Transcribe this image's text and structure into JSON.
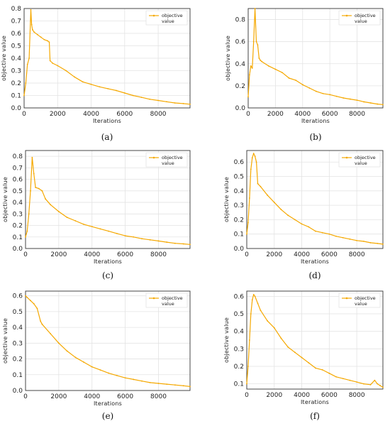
{
  "chart_data": [
    {
      "type": "line",
      "caption": "(a)",
      "xlabel": "Iterations",
      "ylabel": "objective value",
      "legend": [
        "objective",
        "value"
      ],
      "legend_position": "top-right",
      "grid": true,
      "color": "#F5A800",
      "xlim": [
        0,
        9900
      ],
      "ylim": [
        0,
        0.8
      ],
      "xticks": [
        "0",
        "2000",
        "4000",
        "6000",
        "8000"
      ],
      "yticks": [
        "0.0",
        "0.1",
        "0.2",
        "0.3",
        "0.4",
        "0.5",
        "0.6",
        "0.7",
        "0.8"
      ],
      "x": [
        0,
        100,
        200,
        300,
        400,
        450,
        500,
        600,
        800,
        1000,
        1200,
        1400,
        1500,
        1550,
        1700,
        2000,
        2500,
        3000,
        3500,
        4000,
        4500,
        5000,
        5500,
        6000,
        6500,
        7000,
        7500,
        8000,
        8500,
        9000,
        9500,
        9900
      ],
      "y": [
        0.1,
        0.2,
        0.35,
        0.4,
        0.79,
        0.67,
        0.63,
        0.61,
        0.59,
        0.57,
        0.55,
        0.54,
        0.53,
        0.38,
        0.36,
        0.34,
        0.3,
        0.25,
        0.21,
        0.19,
        0.17,
        0.155,
        0.14,
        0.12,
        0.1,
        0.085,
        0.07,
        0.06,
        0.05,
        0.04,
        0.035,
        0.03
      ]
    },
    {
      "type": "line",
      "caption": "(b)",
      "xlabel": "Iterations",
      "ylabel": "objective value",
      "legend": [
        "objective",
        "value"
      ],
      "legend_position": "top-right",
      "grid": true,
      "color": "#F5A800",
      "xlim": [
        0,
        9900
      ],
      "ylim": [
        0,
        0.9
      ],
      "xticks": [
        "0",
        "2000",
        "4000",
        "6000",
        "8000"
      ],
      "yticks": [
        "0.0",
        "0.2",
        "0.4",
        "0.6",
        "0.8"
      ],
      "x": [
        0,
        100,
        200,
        300,
        400,
        500,
        600,
        700,
        800,
        900,
        1000,
        1500,
        2000,
        2500,
        3000,
        3500,
        4000,
        4500,
        5000,
        5500,
        6000,
        6500,
        7000,
        7500,
        8000,
        8500,
        9000,
        9500,
        9900
      ],
      "y": [
        0.1,
        0.3,
        0.38,
        0.36,
        0.6,
        0.9,
        0.6,
        0.57,
        0.45,
        0.43,
        0.42,
        0.38,
        0.35,
        0.32,
        0.27,
        0.25,
        0.21,
        0.18,
        0.15,
        0.13,
        0.12,
        0.105,
        0.09,
        0.08,
        0.07,
        0.055,
        0.045,
        0.035,
        0.03
      ]
    },
    {
      "type": "line",
      "caption": "(c)",
      "xlabel": "Iterations",
      "ylabel": "objective value",
      "legend": [
        "objective",
        "value"
      ],
      "legend_position": "top-right",
      "grid": true,
      "color": "#F5A800",
      "xlim": [
        0,
        9900
      ],
      "ylim": [
        0,
        0.85
      ],
      "xticks": [
        "0",
        "2000",
        "4000",
        "6000",
        "8000"
      ],
      "yticks": [
        "0.0",
        "0.1",
        "0.2",
        "0.3",
        "0.4",
        "0.5",
        "0.6",
        "0.7",
        "0.8"
      ],
      "x": [
        0,
        100,
        200,
        300,
        400,
        500,
        600,
        800,
        1000,
        1200,
        1500,
        2000,
        2500,
        3000,
        3500,
        4000,
        4500,
        5000,
        5500,
        6000,
        6500,
        7000,
        7500,
        8000,
        8500,
        9000,
        9500,
        9900
      ],
      "y": [
        0.1,
        0.15,
        0.3,
        0.5,
        0.79,
        0.65,
        0.53,
        0.52,
        0.5,
        0.43,
        0.38,
        0.32,
        0.27,
        0.24,
        0.21,
        0.19,
        0.17,
        0.15,
        0.13,
        0.11,
        0.1,
        0.085,
        0.075,
        0.065,
        0.055,
        0.045,
        0.04,
        0.035
      ]
    },
    {
      "type": "line",
      "caption": "(d)",
      "xlabel": "Iterations",
      "ylabel": "objective value",
      "legend": [
        "objective",
        "value"
      ],
      "legend_position": "top-right",
      "grid": true,
      "color": "#F5A800",
      "xlim": [
        0,
        9900
      ],
      "ylim": [
        0,
        0.68
      ],
      "xticks": [
        "0",
        "2000",
        "4000",
        "6000",
        "8000"
      ],
      "yticks": [
        "0.0",
        "0.1",
        "0.2",
        "0.3",
        "0.4",
        "0.5",
        "0.6"
      ],
      "x": [
        0,
        100,
        200,
        300,
        400,
        500,
        600,
        700,
        800,
        1000,
        1500,
        2000,
        2500,
        3000,
        3500,
        4000,
        4500,
        5000,
        5500,
        6000,
        6500,
        7000,
        7500,
        8000,
        8500,
        9000,
        9500,
        9900
      ],
      "y": [
        0.1,
        0.18,
        0.35,
        0.55,
        0.63,
        0.66,
        0.64,
        0.6,
        0.45,
        0.43,
        0.37,
        0.32,
        0.27,
        0.23,
        0.2,
        0.17,
        0.15,
        0.12,
        0.11,
        0.1,
        0.085,
        0.075,
        0.065,
        0.055,
        0.05,
        0.04,
        0.035,
        0.03
      ]
    },
    {
      "type": "line",
      "caption": "(e)",
      "xlabel": "Iterations",
      "ylabel": "objective value",
      "legend": [
        "objective",
        "value"
      ],
      "legend_position": "top-right",
      "grid": true,
      "color": "#F5A800",
      "xlim": [
        0,
        9900
      ],
      "ylim": [
        0,
        0.63
      ],
      "xticks": [
        "0",
        "2000",
        "4000",
        "6000",
        "8000"
      ],
      "yticks": [
        "0.0",
        "0.1",
        "0.2",
        "0.3",
        "0.4",
        "0.5",
        "0.6"
      ],
      "x": [
        0,
        100,
        300,
        500,
        700,
        900,
        1000,
        1500,
        2000,
        2500,
        3000,
        3500,
        4000,
        4500,
        5000,
        5500,
        6000,
        6500,
        7000,
        7500,
        8000,
        8500,
        9000,
        9500,
        9900
      ],
      "y": [
        0.6,
        0.59,
        0.57,
        0.55,
        0.52,
        0.44,
        0.42,
        0.36,
        0.3,
        0.25,
        0.21,
        0.18,
        0.15,
        0.13,
        0.11,
        0.095,
        0.08,
        0.07,
        0.06,
        0.05,
        0.045,
        0.04,
        0.035,
        0.03,
        0.025
      ]
    },
    {
      "type": "line",
      "caption": "(f)",
      "xlabel": "Iterations",
      "ylabel": "objective value",
      "legend": [
        "objective",
        "value"
      ],
      "legend_position": "top-right",
      "grid": true,
      "color": "#F5A800",
      "xlim": [
        0,
        9900
      ],
      "ylim": [
        0.07,
        0.63
      ],
      "xticks": [
        "0",
        "2000",
        "4000",
        "6000",
        "8000"
      ],
      "yticks": [
        "0.1",
        "0.2",
        "0.3",
        "0.4",
        "0.5",
        "0.6"
      ],
      "x": [
        0,
        100,
        200,
        300,
        400,
        500,
        600,
        800,
        1000,
        1500,
        2000,
        2500,
        3000,
        3500,
        4000,
        4500,
        5000,
        5500,
        6000,
        6500,
        7000,
        7500,
        8000,
        8500,
        9000,
        9300,
        9500,
        9700,
        9900
      ],
      "y": [
        0.1,
        0.2,
        0.35,
        0.5,
        0.58,
        0.61,
        0.6,
        0.56,
        0.52,
        0.46,
        0.42,
        0.36,
        0.31,
        0.28,
        0.25,
        0.22,
        0.19,
        0.18,
        0.16,
        0.14,
        0.13,
        0.12,
        0.11,
        0.1,
        0.095,
        0.12,
        0.1,
        0.09,
        0.08
      ]
    }
  ]
}
